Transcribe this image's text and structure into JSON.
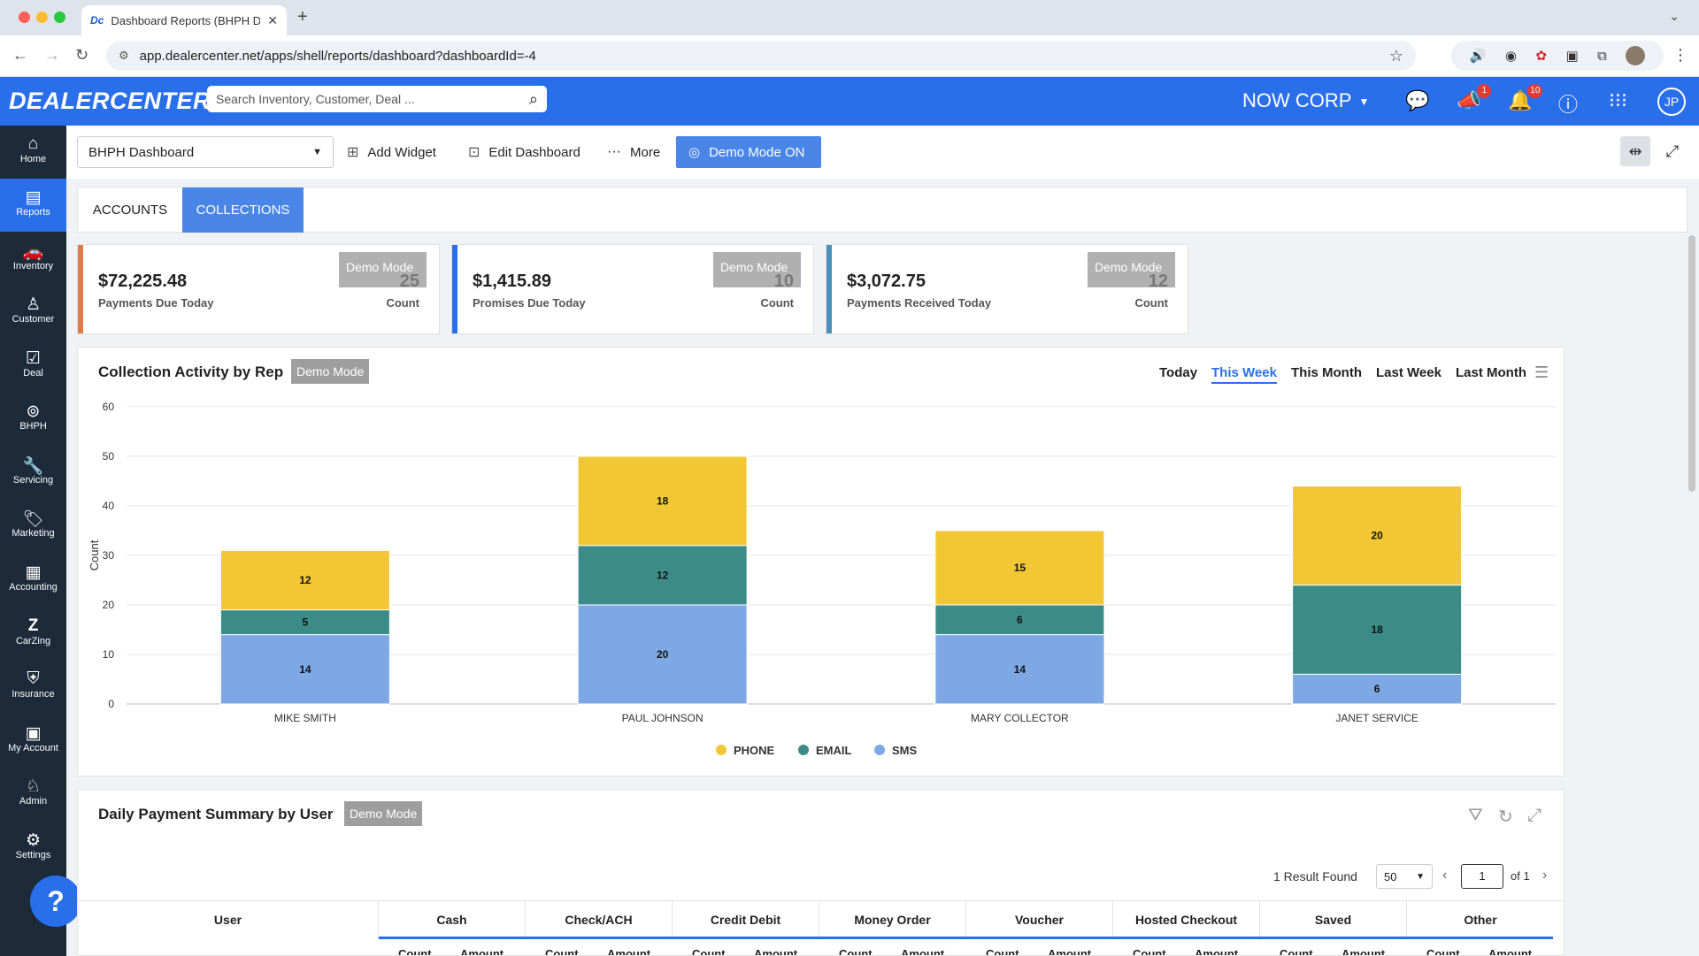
{
  "browser": {
    "tab_title": "Dashboard Reports (BHPH Da",
    "favicon_text": "Dc",
    "url": "app.dealercenter.net/apps/shell/reports/dashboard?dashboardId=-4"
  },
  "header": {
    "logo": "DEALERCENTER",
    "search_placeholder": "Search Inventory, Customer, Deal ...",
    "org_name": "NOW CORP",
    "announcements_badge": "1",
    "notifications_badge": "10",
    "avatar_initials": "JP"
  },
  "sidebar": {
    "items": [
      {
        "label": "Home",
        "icon": "home-icon"
      },
      {
        "label": "Reports",
        "icon": "reports-icon"
      },
      {
        "label": "Inventory",
        "icon": "car-icon"
      },
      {
        "label": "Customer",
        "icon": "customer-icon"
      },
      {
        "label": "Deal",
        "icon": "deal-icon"
      },
      {
        "label": "BHPH",
        "icon": "bhph-icon"
      },
      {
        "label": "Servicing",
        "icon": "wrench-icon"
      },
      {
        "label": "Marketing",
        "icon": "tag-icon"
      },
      {
        "label": "Accounting",
        "icon": "calculator-icon"
      },
      {
        "label": "CarZing",
        "icon": "carzing-icon"
      },
      {
        "label": "Insurance",
        "icon": "shield-icon"
      },
      {
        "label": "My Account",
        "icon": "account-icon"
      },
      {
        "label": "Admin",
        "icon": "admin-icon"
      },
      {
        "label": "Settings",
        "icon": "gear-icon"
      }
    ],
    "help_label": "?"
  },
  "toolbar": {
    "dashboard_select": "BHPH Dashboard",
    "add_widget": "Add Widget",
    "edit_dashboard": "Edit Dashboard",
    "more": "More",
    "demo_mode": "Demo Mode ON"
  },
  "tabs": [
    {
      "label": "ACCOUNTS",
      "active": false
    },
    {
      "label": "COLLECTIONS",
      "active": true
    }
  ],
  "kpis": [
    {
      "amount": "$72,225.48",
      "label": "Payments Due Today",
      "count": "25",
      "count_label": "Count",
      "demo": "Demo Mode",
      "stripe": "#e07a4b"
    },
    {
      "amount": "$1,415.89",
      "label": "Promises Due Today",
      "count": "10",
      "count_label": "Count",
      "demo": "Demo Mode",
      "stripe": "#2a6fea"
    },
    {
      "amount": "$3,072.75",
      "label": "Payments Received Today",
      "count": "12",
      "count_label": "Count",
      "demo": "Demo Mode",
      "stripe": "#4a90b8"
    }
  ],
  "collection_panel": {
    "title": "Collection Activity by Rep",
    "demo": "Demo Mode",
    "periods": [
      "Today",
      "This Week",
      "This Month",
      "Last Week",
      "Last Month"
    ],
    "active_period": "This Week"
  },
  "chart_data": {
    "type": "bar",
    "stacked": true,
    "categories": [
      "MIKE SMITH",
      "PAUL JOHNSON",
      "MARY COLLECTOR",
      "JANET SERVICE"
    ],
    "series": [
      {
        "name": "SMS",
        "values": [
          14,
          20,
          14,
          6
        ],
        "color": "#7ea8e4"
      },
      {
        "name": "EMAIL",
        "values": [
          5,
          12,
          6,
          18
        ],
        "color": "#3b8c88"
      },
      {
        "name": "PHONE",
        "values": [
          12,
          18,
          15,
          20
        ],
        "color": "#f2c735"
      }
    ],
    "legend_order": [
      "PHONE",
      "EMAIL",
      "SMS"
    ],
    "ylabel": "Count",
    "ylim": [
      0,
      60
    ],
    "yticks": [
      0,
      10,
      20,
      30,
      40,
      50,
      60
    ],
    "grid": true,
    "legend": "bottom"
  },
  "payment_panel": {
    "title": "Daily Payment Summary by User",
    "demo": "Demo Mode",
    "results_text": "1 Result Found",
    "page_size": "50",
    "page": "1",
    "of_pages": "of 1",
    "columns": [
      "User",
      "Cash",
      "Check/ACH",
      "Credit Debit",
      "Money Order",
      "Voucher",
      "Hosted Checkout",
      "Saved",
      "Other"
    ],
    "sub_columns": [
      "Count",
      "Amount"
    ]
  }
}
